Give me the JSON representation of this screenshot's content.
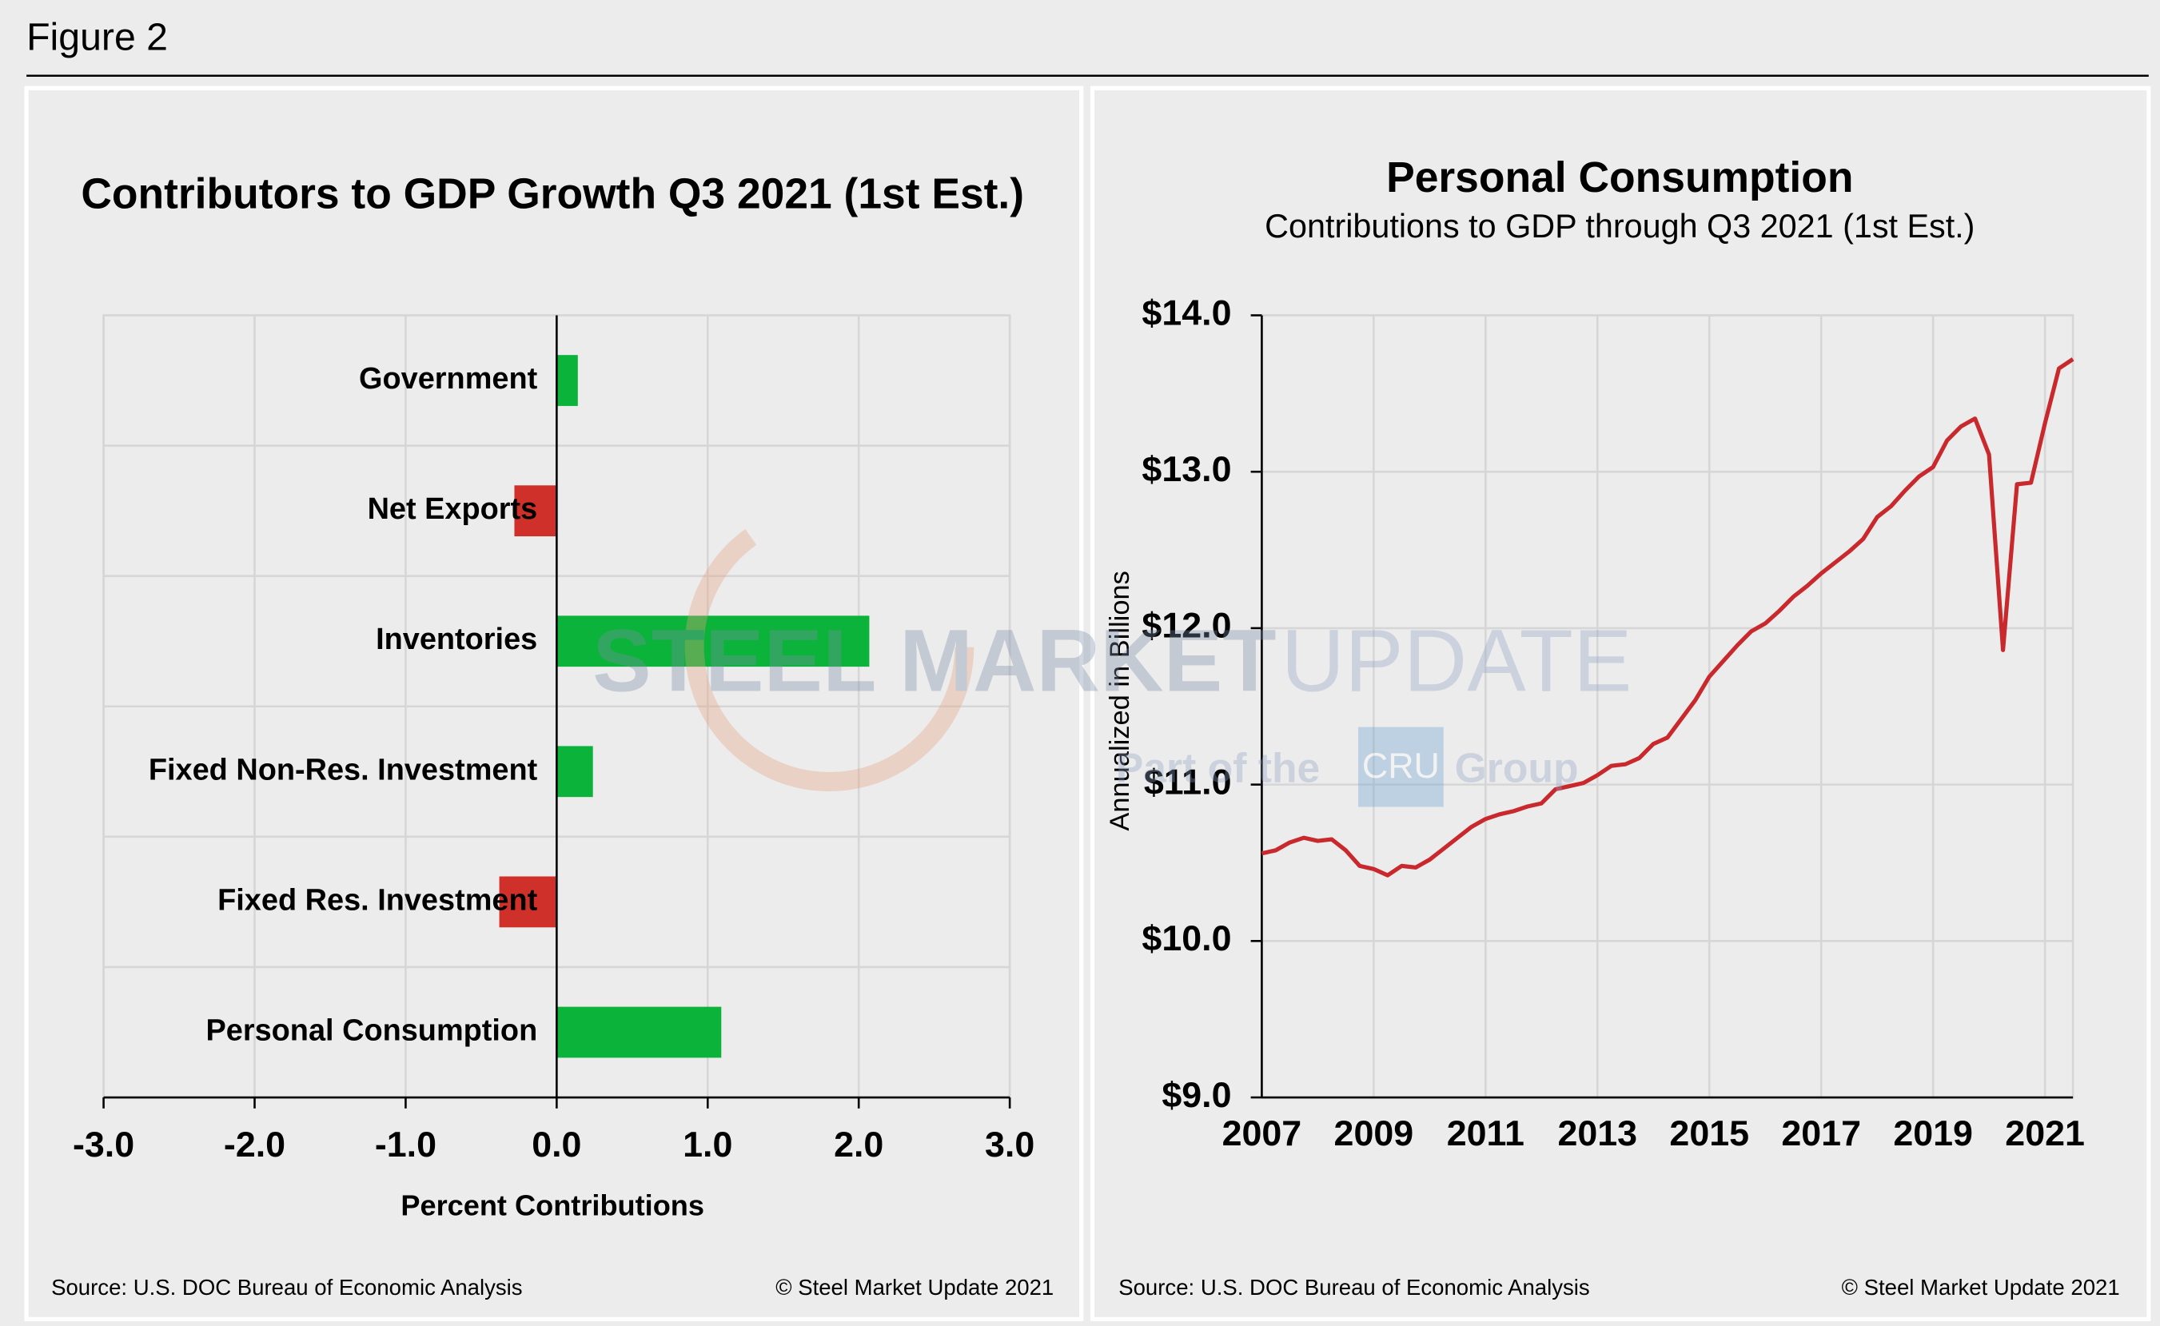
{
  "header": "Figure 2",
  "watermark": {
    "brand_bold": "STEEL MARKET",
    "brand_light": "UPDATE",
    "tagline_1": "Part of the",
    "logo": "CRU",
    "tagline_2": "Group"
  },
  "chart_data": [
    {
      "type": "barh",
      "title": "Contributors to GDP Growth Q3 2021 (1st Est.)",
      "x_label": "Percent Contributions",
      "categories": [
        "Government",
        "Net Exports",
        "Inventories",
        "Fixed Non-Res. Investment",
        "Fixed Res. Investment",
        "Personal Consumption"
      ],
      "values": [
        0.14,
        -0.28,
        2.07,
        0.24,
        -0.38,
        1.09
      ],
      "positive_color": "#0bb33a",
      "negative_color": "#d0302a",
      "xlim": [
        -3,
        3
      ],
      "xticks": [
        {
          "value": -3,
          "label": "-3.0"
        },
        {
          "value": -2,
          "label": "-2.0"
        },
        {
          "value": -1,
          "label": "-1.0"
        },
        {
          "value": 0,
          "label": "0.0"
        },
        {
          "value": 1,
          "label": "1.0"
        },
        {
          "value": 2,
          "label": "2.0"
        },
        {
          "value": 3,
          "label": "3.0"
        }
      ],
      "grid": true,
      "source": "Source: U.S. DOC Bureau of Economic Analysis",
      "copyright": "© Steel Market Update 2021"
    },
    {
      "type": "line",
      "title": "Personal Consumption",
      "subtitle": "Contributions to GDP through Q3 2021 (1st Est.)",
      "y_label": "Annualized in Billions",
      "x": [
        2007,
        2007.25,
        2007.5,
        2007.75,
        2008,
        2008.25,
        2008.5,
        2008.75,
        2009,
        2009.25,
        2009.5,
        2009.75,
        2010,
        2010.25,
        2010.5,
        2010.75,
        2011,
        2011.25,
        2011.5,
        2011.75,
        2012,
        2012.25,
        2012.5,
        2012.75,
        2013,
        2013.25,
        2013.5,
        2013.75,
        2014,
        2014.25,
        2014.5,
        2014.75,
        2015,
        2015.25,
        2015.5,
        2015.75,
        2016,
        2016.25,
        2016.5,
        2016.75,
        2017,
        2017.25,
        2017.5,
        2017.75,
        2018,
        2018.25,
        2018.5,
        2018.75,
        2019,
        2019.25,
        2019.5,
        2019.75,
        2020,
        2020.25,
        2020.5,
        2020.75,
        2021,
        2021.25,
        2021.5
      ],
      "values": [
        10.56,
        10.58,
        10.63,
        10.66,
        10.64,
        10.65,
        10.58,
        10.48,
        10.46,
        10.42,
        10.48,
        10.47,
        10.52,
        10.59,
        10.66,
        10.73,
        10.78,
        10.81,
        10.83,
        10.86,
        10.88,
        10.97,
        10.99,
        11.01,
        11.06,
        11.12,
        11.13,
        11.17,
        11.26,
        11.3,
        11.42,
        11.54,
        11.69,
        11.79,
        11.89,
        11.98,
        12.03,
        12.11,
        12.2,
        12.27,
        12.35,
        12.42,
        12.49,
        12.57,
        12.71,
        12.78,
        12.88,
        12.97,
        13.03,
        13.2,
        13.29,
        13.34,
        13.11,
        11.86,
        12.92,
        12.93,
        13.31,
        13.66,
        13.72
      ],
      "color": "#c9282d",
      "xlim": [
        2007,
        2021.5
      ],
      "xticks": [
        2007,
        2009,
        2011,
        2013,
        2015,
        2017,
        2019,
        2021
      ],
      "ylim": [
        9,
        14
      ],
      "yticks": [
        {
          "value": 9,
          "label": "$9.0"
        },
        {
          "value": 10,
          "label": "$10.0"
        },
        {
          "value": 11,
          "label": "$11.0"
        },
        {
          "value": 12,
          "label": "$12.0"
        },
        {
          "value": 13,
          "label": "$13.0"
        },
        {
          "value": 14,
          "label": "$14.0"
        }
      ],
      "grid": true,
      "source": "Source: U.S. DOC Bureau of Economic Analysis",
      "copyright": "© Steel Market Update 2021"
    }
  ]
}
